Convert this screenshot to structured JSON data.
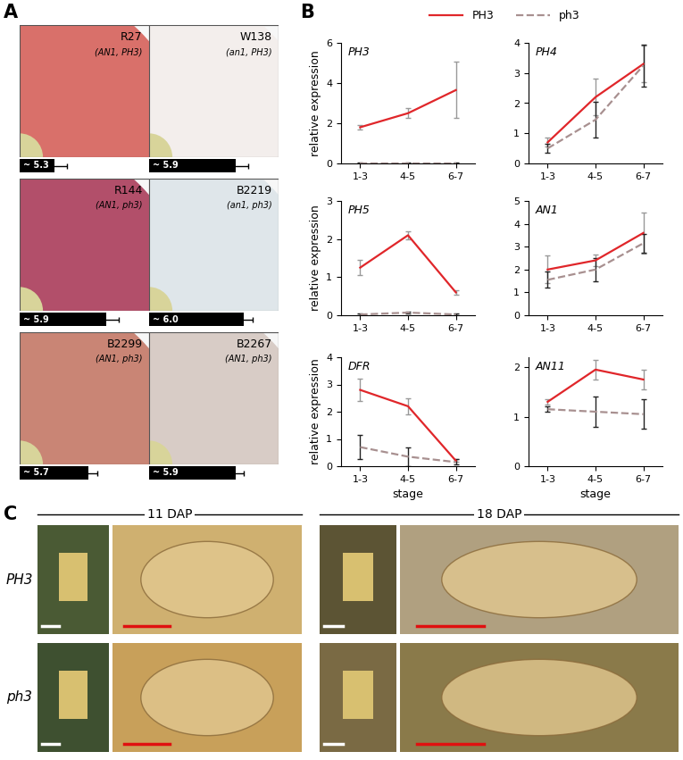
{
  "panel_labels": [
    "A",
    "B",
    "C"
  ],
  "panel_A": {
    "ph_range": [
      4.9,
      6.4
    ],
    "photos": [
      {
        "name": "R27",
        "genotype": "(AN1, PH3)",
        "ph": {
          "value": 5.3,
          "label": "~ 5.3",
          "error": 0.15
        }
      },
      {
        "name": "W138",
        "genotype": "(an1, PH3)",
        "ph": {
          "value": 5.9,
          "label": "~ 5.9",
          "error": 0.15
        }
      },
      {
        "name": "R144",
        "genotype": "(AN1, ph3)",
        "ph": {
          "value": 5.9,
          "label": "~ 5.9",
          "error": 0.15
        }
      },
      {
        "name": "B2219",
        "genotype": "(an1, ph3)",
        "ph": {
          "value": 6.0,
          "label": "~ 6.0",
          "error": 0.1
        }
      },
      {
        "name": "B2299",
        "genotype": "(AN1, ph3)",
        "ph": {
          "value": 5.7,
          "label": "~ 5.7",
          "error": 0.1
        }
      },
      {
        "name": "B2267",
        "genotype": "(AN1, ph3)",
        "ph": {
          "value": 5.9,
          "label": "~ 5.9",
          "error": 0.1
        }
      }
    ]
  },
  "chart_data": [
    {
      "type": "line",
      "title": "PH3",
      "legend": "upper center",
      "ylabel": "relative expression",
      "categories": [
        "1-3",
        "4-5",
        "6-7"
      ],
      "ylim": [
        0,
        6
      ],
      "yticks": [
        0,
        2,
        4,
        6
      ],
      "series": [
        {
          "name": "PH3",
          "color": "#e0262a",
          "line_style": "solid",
          "values": [
            1.8,
            2.5,
            3.65
          ],
          "errors": [
            0.1,
            0.25,
            1.4
          ]
        },
        {
          "name": "ph3",
          "color": "#a89090",
          "line_style": "dashed",
          "values": [
            0.0,
            0.0,
            0.0
          ],
          "errors": [
            0.05,
            0.05,
            0.05
          ]
        }
      ]
    },
    {
      "type": "line",
      "title": "PH4",
      "categories": [
        "1-3",
        "4-5",
        "6-7"
      ],
      "ylim": [
        0,
        4
      ],
      "yticks": [
        0,
        1,
        2,
        3,
        4
      ],
      "series": [
        {
          "name": "PH3",
          "color": "#e0262a",
          "line_style": "solid",
          "values": [
            0.7,
            2.2,
            3.3
          ],
          "errors": [
            0.15,
            0.6,
            0.6
          ]
        },
        {
          "name": "ph3",
          "color": "#a89090",
          "line_style": "dashed",
          "values": [
            0.5,
            1.45,
            3.25
          ],
          "errors": [
            0.15,
            0.6,
            0.7
          ]
        }
      ]
    },
    {
      "type": "line",
      "title": "PH5",
      "ylabel": "relative expression",
      "categories": [
        "1-3",
        "4-5",
        "6-7"
      ],
      "ylim": [
        0,
        3
      ],
      "yticks": [
        0,
        1,
        2,
        3
      ],
      "series": [
        {
          "name": "PH3",
          "color": "#e0262a",
          "line_style": "solid",
          "values": [
            1.25,
            2.1,
            0.6
          ],
          "errors": [
            0.2,
            0.1,
            0.05
          ]
        },
        {
          "name": "ph3",
          "color": "#a89090",
          "line_style": "dashed",
          "values": [
            0.02,
            0.07,
            0.02
          ],
          "errors": [
            0.02,
            0.03,
            0.02
          ]
        }
      ]
    },
    {
      "type": "line",
      "title": "AN1",
      "categories": [
        "1-3",
        "4-5",
        "6-7"
      ],
      "ylim": [
        0,
        5
      ],
      "yticks": [
        0,
        1,
        2,
        3,
        4,
        5
      ],
      "series": [
        {
          "name": "PH3",
          "color": "#e0262a",
          "line_style": "solid",
          "values": [
            2.0,
            2.4,
            3.6
          ],
          "errors": [
            0.6,
            0.25,
            0.9
          ]
        },
        {
          "name": "ph3",
          "color": "#a89090",
          "line_style": "dashed",
          "values": [
            1.55,
            2.0,
            3.15
          ],
          "errors": [
            0.35,
            0.5,
            0.4
          ]
        }
      ]
    },
    {
      "type": "line",
      "title": "DFR",
      "ylabel": "relative expression",
      "xlabel": "stage",
      "categories": [
        "1-3",
        "4-5",
        "6-7"
      ],
      "ylim": [
        0,
        4
      ],
      "yticks": [
        0,
        1,
        2,
        3,
        4
      ],
      "series": [
        {
          "name": "PH3",
          "color": "#e0262a",
          "line_style": "solid",
          "values": [
            2.8,
            2.2,
            0.2
          ],
          "errors": [
            0.4,
            0.3,
            0.05
          ]
        },
        {
          "name": "ph3",
          "color": "#a89090",
          "line_style": "dashed",
          "values": [
            0.7,
            0.35,
            0.15
          ],
          "errors": [
            0.45,
            0.35,
            0.1
          ]
        }
      ]
    },
    {
      "type": "line",
      "title": "AN11",
      "xlabel": "stage",
      "categories": [
        "1-3",
        "4-5",
        "6-7"
      ],
      "ylim": [
        0,
        2.2
      ],
      "yticks": [
        0,
        1,
        2
      ],
      "series": [
        {
          "name": "PH3",
          "color": "#e0262a",
          "line_style": "solid",
          "values": [
            1.3,
            1.95,
            1.75
          ],
          "errors": [
            0.05,
            0.2,
            0.2
          ]
        },
        {
          "name": "ph3",
          "color": "#a89090",
          "line_style": "dashed",
          "values": [
            1.15,
            1.1,
            1.05
          ],
          "errors": [
            0.05,
            0.3,
            0.3
          ]
        }
      ]
    }
  ],
  "panel_C": {
    "columns": [
      "11 DAP",
      "18 DAP"
    ],
    "rows": [
      "PH3",
      "ph3"
    ]
  }
}
